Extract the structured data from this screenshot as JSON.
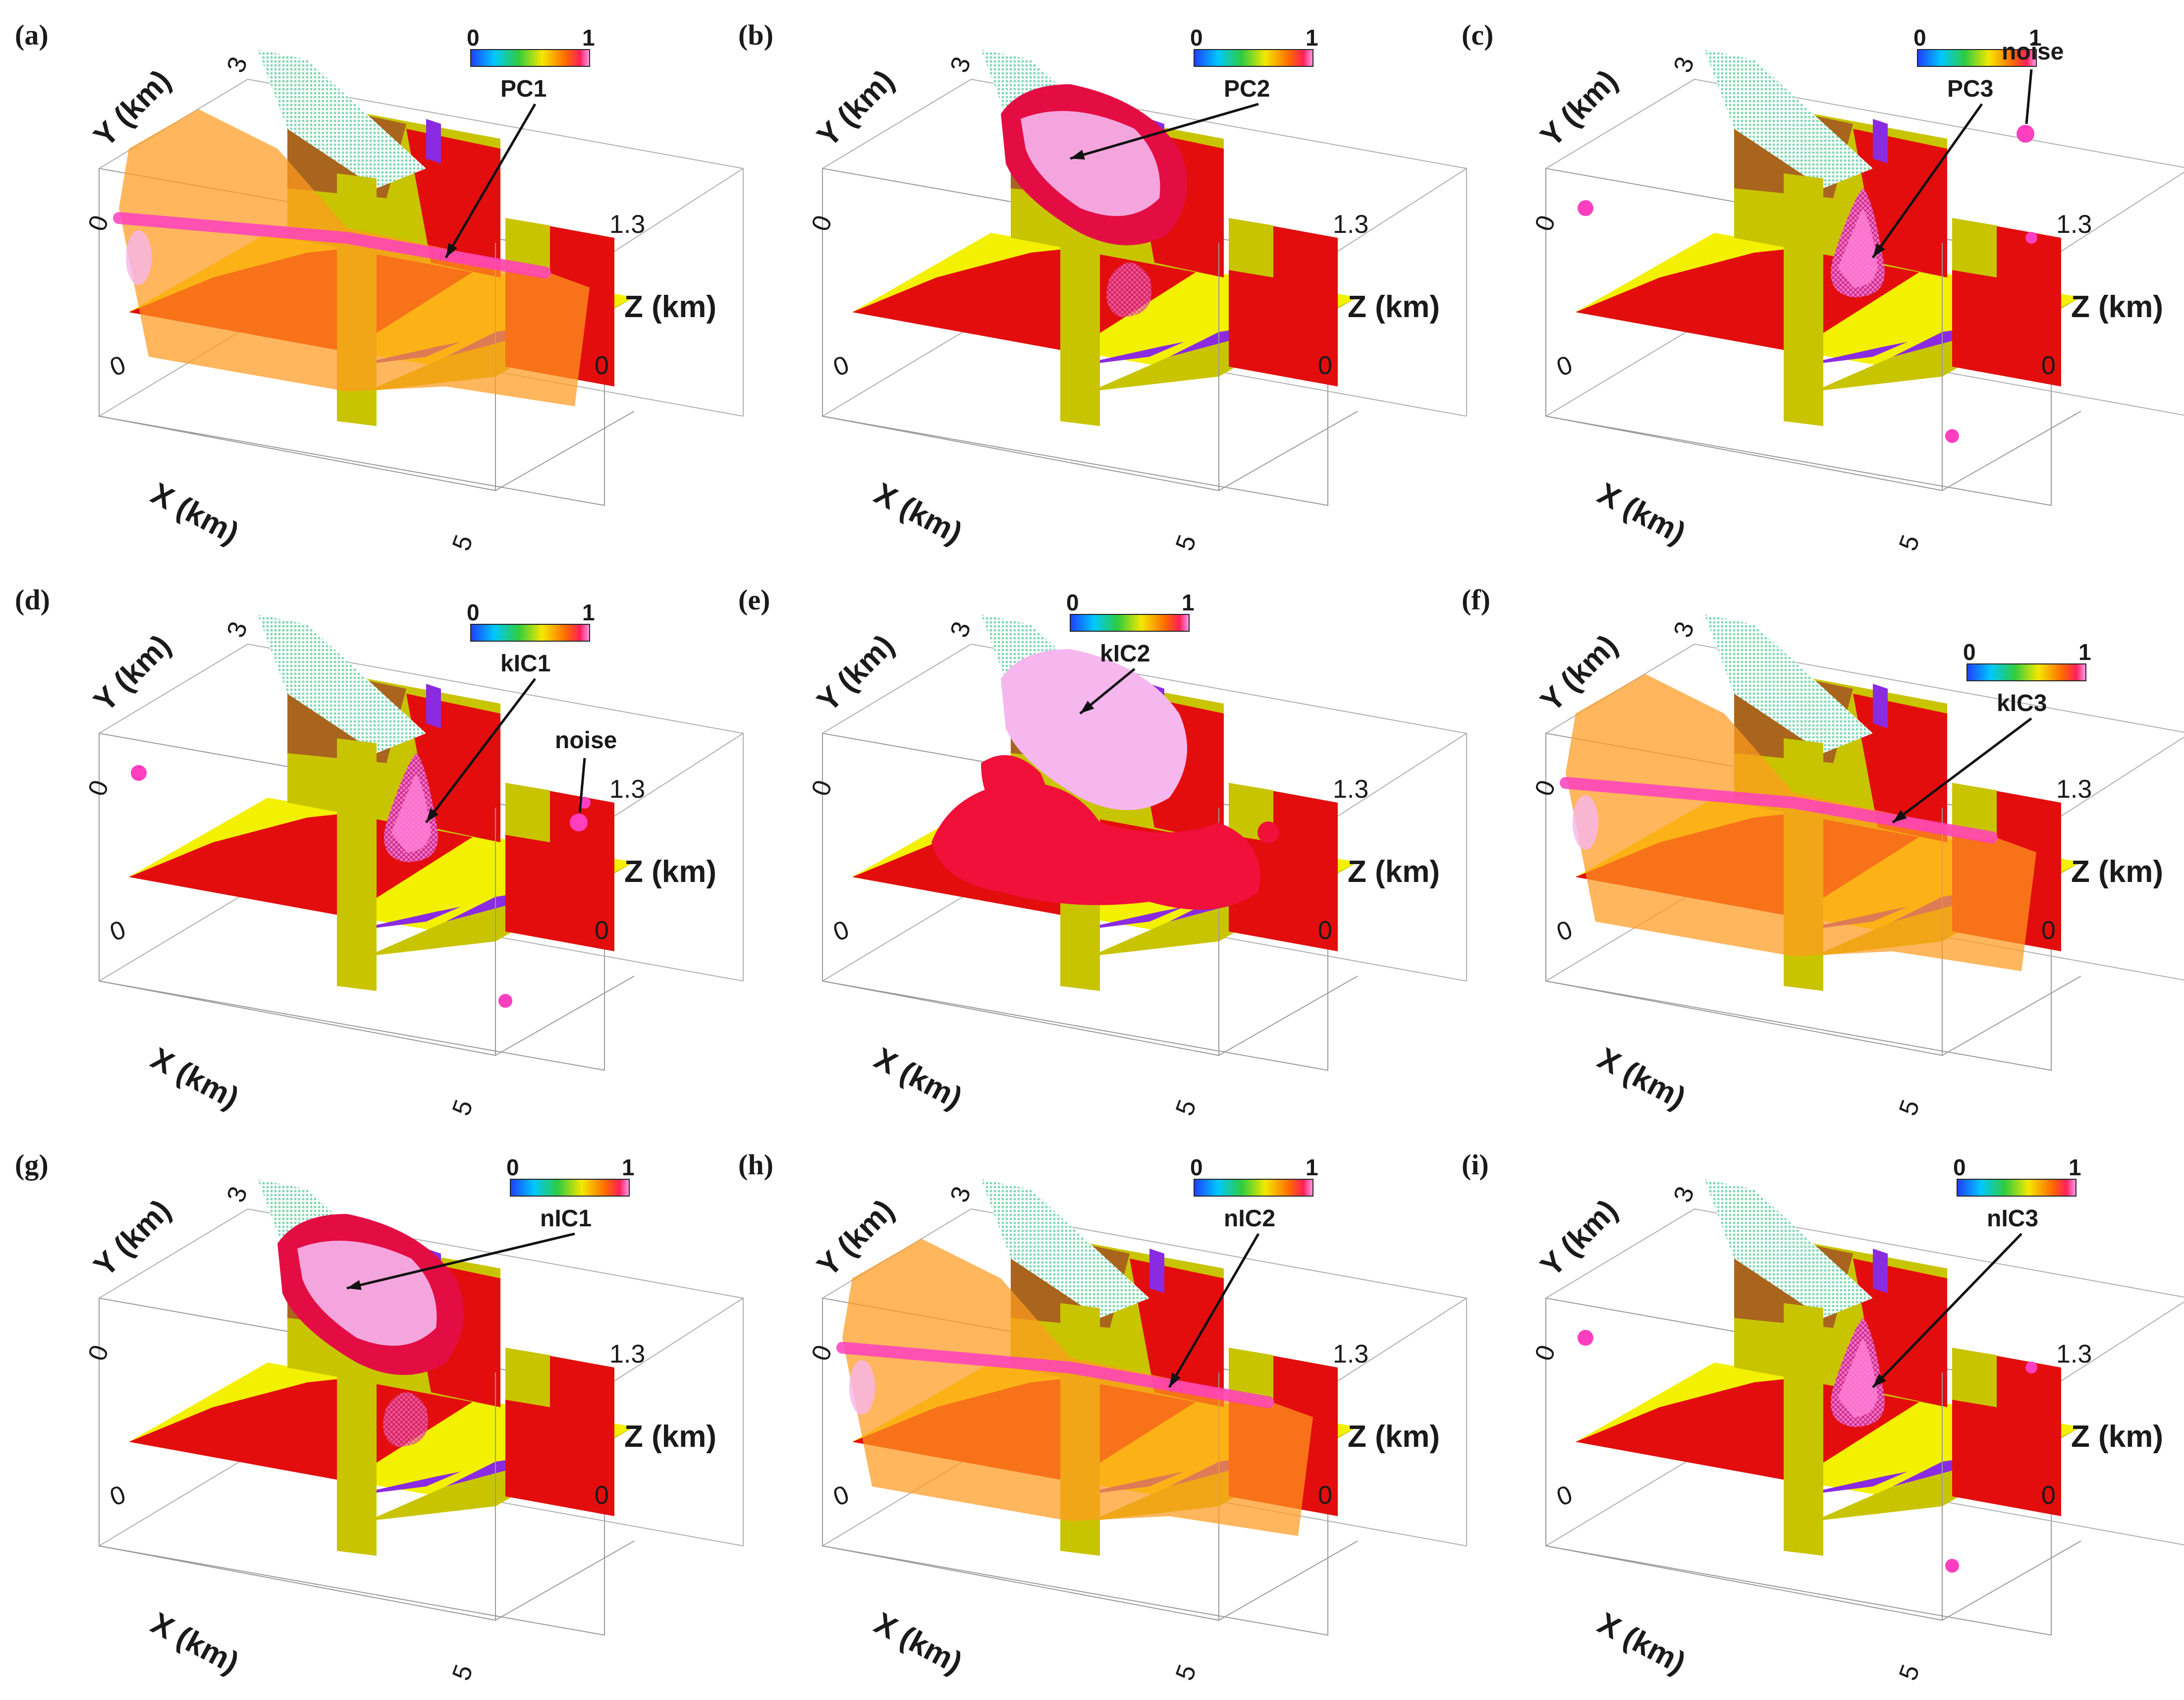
{
  "figure": {
    "panels": [
      {
        "label": "(a)",
        "component": "PC1",
        "variant": "wide"
      },
      {
        "label": "(b)",
        "component": "PC2",
        "variant": "rock"
      },
      {
        "label": "(c)",
        "component": "PC3",
        "variant": "cone",
        "noise": "noise"
      },
      {
        "label": "(d)",
        "component": "kIC1",
        "variant": "cone",
        "noise": "noise"
      },
      {
        "label": "(e)",
        "component": "kIC2",
        "variant": "blob"
      },
      {
        "label": "(f)",
        "component": "kIC3",
        "variant": "wide"
      },
      {
        "label": "(g)",
        "component": "nIC1",
        "variant": "rock"
      },
      {
        "label": "(h)",
        "component": "nIC2",
        "variant": "wide"
      },
      {
        "label": "(i)",
        "component": "nIC3",
        "variant": "cone"
      }
    ],
    "axes": {
      "x_label": "X (km)",
      "y_label": "Y (km)",
      "z_label": "Z (km)",
      "x_ticks": [
        "0",
        "5"
      ],
      "y_ticks": [
        "0",
        "3"
      ],
      "z_ticks": [
        "1.3",
        "0"
      ]
    },
    "colorbar": {
      "min": "0",
      "max": "1"
    },
    "colors": {
      "yellow": "#f3f000",
      "olive": "#c9c400",
      "red": "#e30d0d",
      "purple": "#8a2be2",
      "teal": "#a8e6cf",
      "orange": "#ff9a1f",
      "magenta": "#ff3fc0",
      "pink": "#f6b6ee"
    }
  }
}
